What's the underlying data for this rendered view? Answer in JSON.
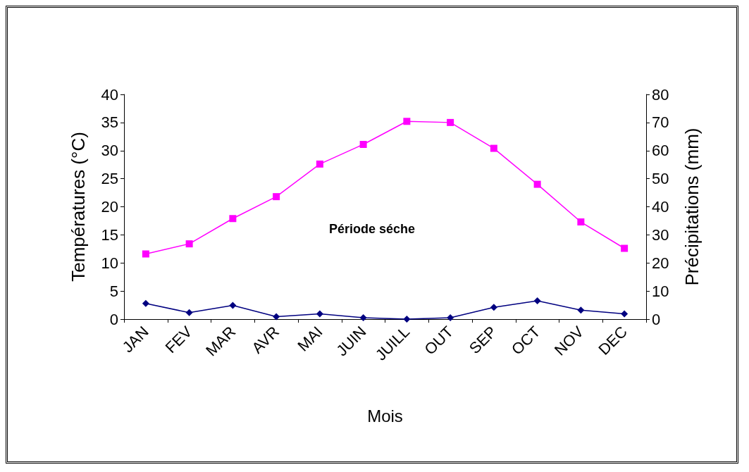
{
  "chart_data": {
    "type": "line",
    "xlabel": "Mois",
    "ylabel": "Températures (°C)",
    "y2label": "Précipitations (mm)",
    "categories": [
      "JAN",
      "FEV",
      "MAR",
      "AVR",
      "MAI",
      "JUIN",
      "JUILL",
      "OUT",
      "SEP",
      "OCT",
      "NOV",
      "DEC"
    ],
    "series": [
      {
        "color": "#ff00ff",
        "marker": "square",
        "values": [
          11.6,
          13.4,
          17.9,
          21.8,
          27.6,
          31.1,
          35.2,
          35.0,
          30.4,
          24.0,
          17.3,
          12.6
        ]
      },
      {
        "color": "#000080",
        "marker": "diamond",
        "axis": "y2",
        "values": [
          5.6,
          2.3,
          4.9,
          0.9,
          1.9,
          0.5,
          0,
          0.5,
          4.2,
          6.5,
          3.2,
          1.9
        ]
      }
    ],
    "ylim": [
      0,
      40
    ],
    "yticks": [
      0,
      5,
      10,
      15,
      20,
      25,
      30,
      35,
      40
    ],
    "y2lim": [
      0,
      80
    ],
    "y2ticks": [
      0,
      10,
      20,
      30,
      40,
      50,
      60,
      70,
      80
    ],
    "annotations": [
      "Période séche"
    ],
    "grid": false,
    "line_style": "solid"
  }
}
